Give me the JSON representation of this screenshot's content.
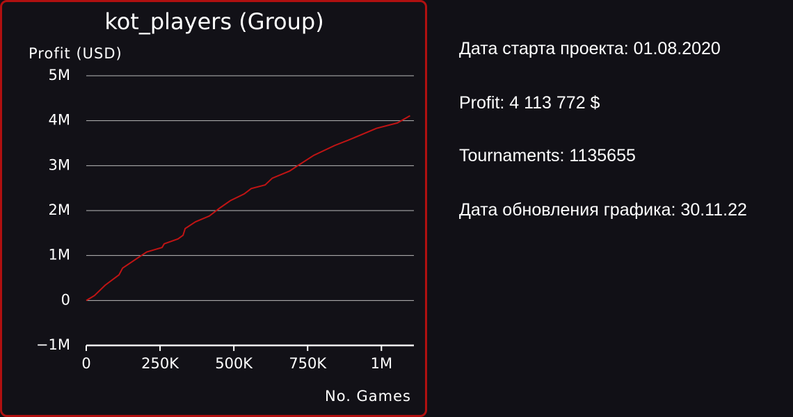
{
  "chart_data": {
    "type": "line",
    "title": "kot_players (Group)",
    "y_label": "Profit (USD)",
    "x_label": "No. Games",
    "x": [
      0,
      28000,
      64000,
      111000,
      123000,
      182000,
      205000,
      257000,
      264000,
      311000,
      328000,
      335000,
      370000,
      417000,
      453000,
      488000,
      535000,
      559000,
      606000,
      630000,
      689000,
      712000,
      771000,
      842000,
      889000,
      983000,
      1054000,
      1097000
    ],
    "series": [
      {
        "color": "#c01414",
        "values": [
          0,
          110000,
          340000,
          570000,
          720000,
          980000,
          1080000,
          1180000,
          1260000,
          1370000,
          1450000,
          1600000,
          1750000,
          1880000,
          2060000,
          2220000,
          2370000,
          2490000,
          2570000,
          2720000,
          2880000,
          2980000,
          3230000,
          3450000,
          3570000,
          3830000,
          3950000,
          4110000
        ]
      }
    ],
    "xlim": [
      0,
      1110000
    ],
    "ylim": [
      -1000000,
      5000000
    ],
    "xticks": [
      0,
      {
        "value": 250000,
        "label": "250K"
      },
      {
        "value": 500000,
        "label": "500K"
      },
      {
        "value": 750000,
        "label": "750K"
      },
      {
        "value": 1000000,
        "label": "1M"
      }
    ],
    "yticks": [
      {
        "value": -1000000,
        "label": "−1M"
      },
      0,
      {
        "value": 1000000,
        "label": "1M"
      },
      {
        "value": 2000000,
        "label": "2M"
      },
      {
        "value": 3000000,
        "label": "3M"
      },
      {
        "value": 4000000,
        "label": "4M"
      },
      {
        "value": 5000000,
        "label": "5M"
      }
    ],
    "grid": true
  },
  "info": {
    "start_date": "Дата старта проекта: 01.08.2020",
    "profit": "Profit: 4 113 772 $",
    "tournaments": "Tournaments: 1135655",
    "update_date": "Дата обновления графика: 30.11.22"
  }
}
